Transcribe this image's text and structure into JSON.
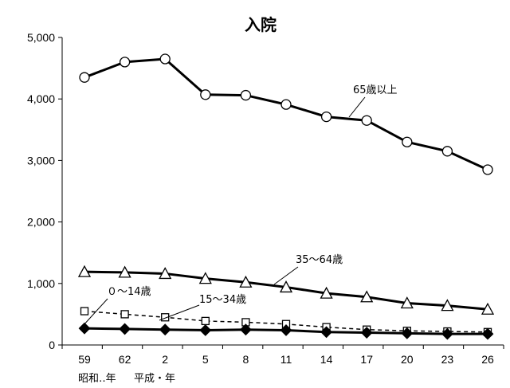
{
  "chart_data": {
    "type": "line",
    "title": "入院",
    "categories": [
      "59",
      "62",
      "2",
      "5",
      "8",
      "11",
      "14",
      "17",
      "20",
      "23",
      "26"
    ],
    "era_labels": [
      "昭和‥年",
      "平成・年"
    ],
    "ylim": [
      0,
      5000
    ],
    "yticks": [
      0,
      1000,
      2000,
      3000,
      4000,
      5000
    ],
    "ytick_labels": [
      "0",
      "1,000",
      "2,000",
      "3,000",
      "4,000",
      "5,000"
    ],
    "grid": false,
    "series": [
      {
        "name": "65歳以上",
        "marker": "circle",
        "dash": "solid",
        "values": [
          4350,
          4600,
          4650,
          4070,
          4060,
          3910,
          3710,
          3650,
          3300,
          3150,
          2850
        ]
      },
      {
        "name": "35～64歳",
        "marker": "triangle",
        "dash": "solid",
        "values": [
          1190,
          1180,
          1160,
          1080,
          1020,
          940,
          840,
          780,
          680,
          640,
          580
        ]
      },
      {
        "name": "15～34歳",
        "marker": "square",
        "dash": "dashed",
        "values": [
          550,
          500,
          450,
          390,
          370,
          340,
          290,
          250,
          230,
          220,
          210
        ]
      },
      {
        "name": "０～14歳",
        "marker": "diamond",
        "dash": "solid",
        "values": [
          270,
          260,
          250,
          240,
          250,
          240,
          210,
          200,
          190,
          180,
          180
        ]
      }
    ]
  }
}
